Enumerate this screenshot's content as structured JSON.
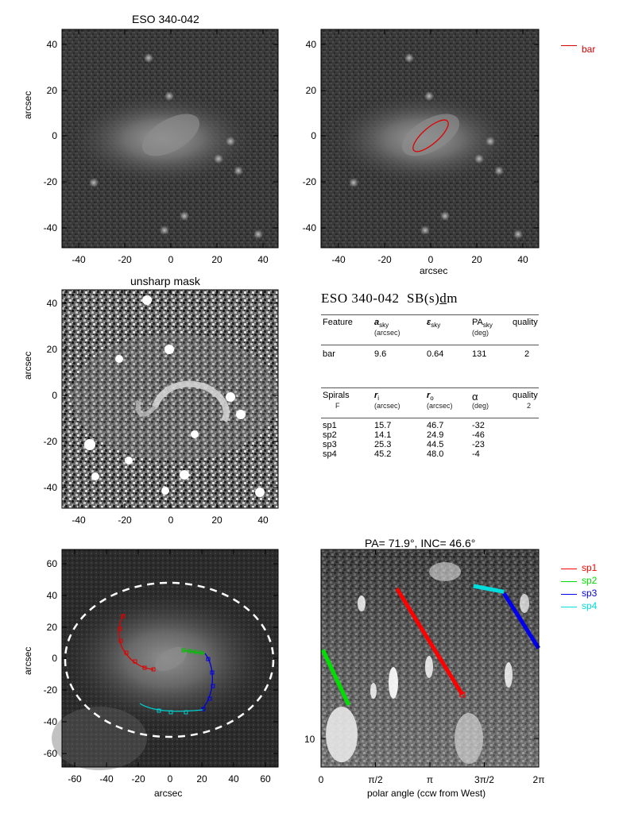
{
  "panel1": {
    "title": "ESO 340-042",
    "ylabel": "arcsec",
    "xticks": [
      "-40",
      "-20",
      "0",
      "20",
      "40"
    ],
    "yticks": [
      "40",
      "20",
      "0",
      "-20",
      "-40"
    ]
  },
  "panel2": {
    "xlabel": "arcsec",
    "xticks": [
      "-40",
      "-20",
      "0",
      "20",
      "40"
    ],
    "yticks": [
      "40",
      "20",
      "0",
      "-20",
      "-40"
    ],
    "legend": [
      {
        "label": "bar",
        "color": "#d00000"
      }
    ]
  },
  "panel3": {
    "title": "unsharp mask",
    "ylabel": "arcsec",
    "xticks": [
      "-40",
      "-20",
      "0",
      "20",
      "40"
    ],
    "yticks": [
      "40",
      "20",
      "0",
      "-20",
      "-40"
    ]
  },
  "table": {
    "galaxy": "ESO 340-042",
    "type_prefix": "SB(s)",
    "type_underlined": "d",
    "type_suffix": "m",
    "bar_header": {
      "feature": "Feature",
      "a": "a",
      "a_sub": "sky",
      "a_unit": "(arcsec)",
      "e": "ε",
      "e_sub": "sky",
      "pa": "PA",
      "pa_sub": "sky",
      "pa_unit": "(deg)",
      "quality": "quality"
    },
    "bar_rows": [
      {
        "feature": "bar",
        "a": "9.6",
        "e": "0.64",
        "pa": "131",
        "q": "2"
      }
    ],
    "spiral_header": {
      "feature": "Spirals",
      "f": "F",
      "ri": "r",
      "ri_sub": "i",
      "ri_unit": "(arcsec)",
      "ro": "r",
      "ro_sub": "o",
      "ro_unit": "(arcsec)",
      "alpha": "α",
      "alpha_unit": "(deg)",
      "quality": "quality",
      "quality_val": "2"
    },
    "spiral_rows": [
      {
        "name": "sp1",
        "ri": "15.7",
        "ro": "46.7",
        "alpha": "-32"
      },
      {
        "name": "sp2",
        "ri": "14.1",
        "ro": "24.9",
        "alpha": "-46"
      },
      {
        "name": "sp3",
        "ri": "25.3",
        "ro": "44.5",
        "alpha": "-23"
      },
      {
        "name": "sp4",
        "ri": "45.2",
        "ro": "48.0",
        "alpha": "-4"
      }
    ]
  },
  "panel5": {
    "ylabel": "arcsec",
    "xlabel": "arcsec",
    "xticks": [
      "-60",
      "-40",
      "-20",
      "0",
      "20",
      "40",
      "60"
    ],
    "yticks": [
      "60",
      "40",
      "20",
      "0",
      "-20",
      "-40",
      "-60"
    ]
  },
  "panel6": {
    "title": "PA=  71.9°, INC=  46.6°",
    "xlabel": "polar angle (ccw from West)",
    "xticks": [
      "0",
      "π/2",
      "π",
      "3π/2",
      "2π"
    ],
    "yticks": [
      "10"
    ],
    "legend": [
      {
        "label": "sp1",
        "color": "#ff0000"
      },
      {
        "label": "sp2",
        "color": "#00dd00"
      },
      {
        "label": "sp3",
        "color": "#0000ee"
      },
      {
        "label": "sp4",
        "color": "#00dddd"
      }
    ]
  },
  "chart_data": [
    {
      "type": "line",
      "title": "PA=  71.9°, INC=  46.6°",
      "xlabel": "polar angle (ccw from West)",
      "ylabel": "",
      "xlim": [
        0,
        6.2832
      ],
      "yscale": "log",
      "series": [
        {
          "name": "sp1",
          "color": "#ff0000",
          "x": [
            2.19,
            4.08
          ],
          "y": [
            46.7,
            15.7
          ]
        },
        {
          "name": "sp2",
          "color": "#00dd00",
          "x": [
            0.05,
            0.8
          ],
          "y": [
            24.9,
            14.1
          ]
        },
        {
          "name": "sp3",
          "color": "#0000ee",
          "x": [
            5.28,
            6.28
          ],
          "y": [
            44.5,
            25.3
          ]
        },
        {
          "name": "sp4",
          "color": "#00dddd",
          "x": [
            4.4,
            5.28
          ],
          "y": [
            48.0,
            45.2
          ]
        }
      ]
    }
  ]
}
